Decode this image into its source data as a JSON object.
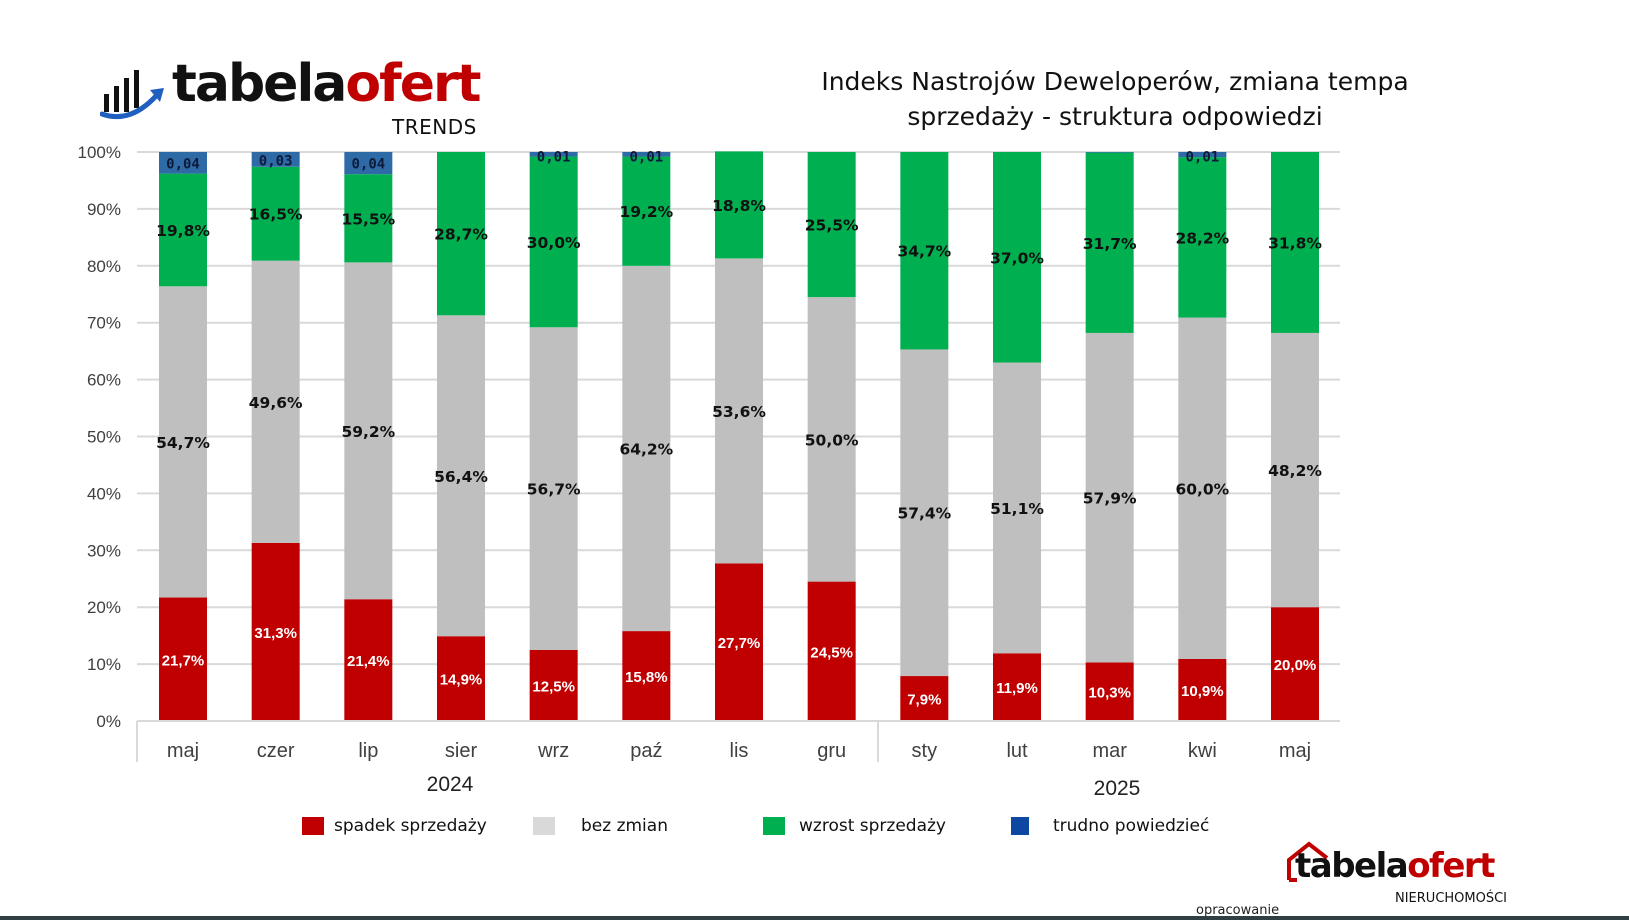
{
  "header": {
    "logo_main_dark": "tabela",
    "logo_main_red": "ofert",
    "logo_sub": "TRENDS",
    "logo_icon": "bar-chart-arrow-icon",
    "title_line1": "Indeks Nastrojów Deweloperów, zmiana tempa",
    "title_line2": "sprzedaży - struktura odpowiedzi"
  },
  "chart_data": {
    "type": "bar",
    "stacked": true,
    "title": "Indeks Nastrojów Deweloperów, zmiana tempa sprzedaży - struktura odpowiedzi",
    "xlabel": "",
    "ylabel": "",
    "ylim": [
      0,
      100
    ],
    "yticks": [
      "0%",
      "10%",
      "20%",
      "30%",
      "40%",
      "50%",
      "60%",
      "70%",
      "80%",
      "90%",
      "100%"
    ],
    "grid": true,
    "legend_position": "bottom",
    "categories": [
      "maj",
      "czer",
      "lip",
      "sier",
      "wrz",
      "paź",
      "lis",
      "gru",
      "sty",
      "lut",
      "mar",
      "kwi",
      "maj"
    ],
    "year_groups": [
      {
        "label": "2024",
        "start": 0,
        "end": 7
      },
      {
        "label": "2025",
        "start": 8,
        "end": 12
      }
    ],
    "series": [
      {
        "name": "spadek sprzedaży",
        "color": "#c00000",
        "values": [
          21.7,
          31.3,
          21.4,
          14.9,
          12.5,
          15.8,
          27.7,
          24.5,
          7.9,
          11.9,
          10.3,
          10.9,
          20.0
        ],
        "labels": [
          "21,7%",
          "31,3%",
          "21,4%",
          "14,9%",
          "12,5%",
          "15,8%",
          "27,7%",
          "24,5%",
          "7,9%",
          "11,9%",
          "10,3%",
          "10,9%",
          "20,0%"
        ]
      },
      {
        "name": "bez zmian",
        "color": "#bfbfbf",
        "values": [
          54.7,
          49.6,
          59.2,
          56.4,
          56.7,
          64.2,
          53.6,
          50.0,
          57.4,
          51.1,
          57.9,
          60.0,
          48.2
        ],
        "labels": [
          "54,7%",
          "49,6%",
          "59,2%",
          "56,4%",
          "56,7%",
          "64,2%",
          "53,6%",
          "50,0%",
          "57,4%",
          "51,1%",
          "57,9%",
          "60,0%",
          "48,2%"
        ]
      },
      {
        "name": "wzrost sprzedaży",
        "color": "#00b050",
        "values": [
          19.8,
          16.5,
          15.5,
          28.7,
          30.0,
          19.2,
          18.8,
          25.5,
          34.7,
          37.0,
          31.7,
          28.2,
          31.8
        ],
        "labels": [
          "19,8%",
          "16,5%",
          "15,5%",
          "28,7%",
          "30,0%",
          "19,2%",
          "18,8%",
          "25,5%",
          "34,7%",
          "37,0%",
          "31,7%",
          "28,2%",
          "31,8%"
        ]
      },
      {
        "name": "trudno powiedzieć",
        "color": "#2e6aa6",
        "values": [
          4,
          3,
          4,
          0,
          1,
          1,
          0,
          0,
          0,
          0,
          0,
          1,
          0
        ],
        "labels": [
          "0,04",
          "0,03",
          "0,04",
          "",
          "0,01",
          "0,01",
          "",
          "",
          "",
          "",
          "",
          "0,01",
          ""
        ]
      }
    ]
  },
  "legend": [
    {
      "label": "spadek sprzedaży",
      "color": "#c00000"
    },
    {
      "label": "bez zmian",
      "color": "#d9d9d9"
    },
    {
      "label": "wzrost sprzedaży",
      "color": "#00b050"
    },
    {
      "label": "trudno powiedzieć",
      "color": "#0d47a1"
    }
  ],
  "footer": {
    "credit": "opracowanie",
    "logo_main_dark": "tabela",
    "logo_main_red": "ofert",
    "logo_sub": "NIERUCHOMOŚCI",
    "logo_icon": "house-outline-icon"
  }
}
